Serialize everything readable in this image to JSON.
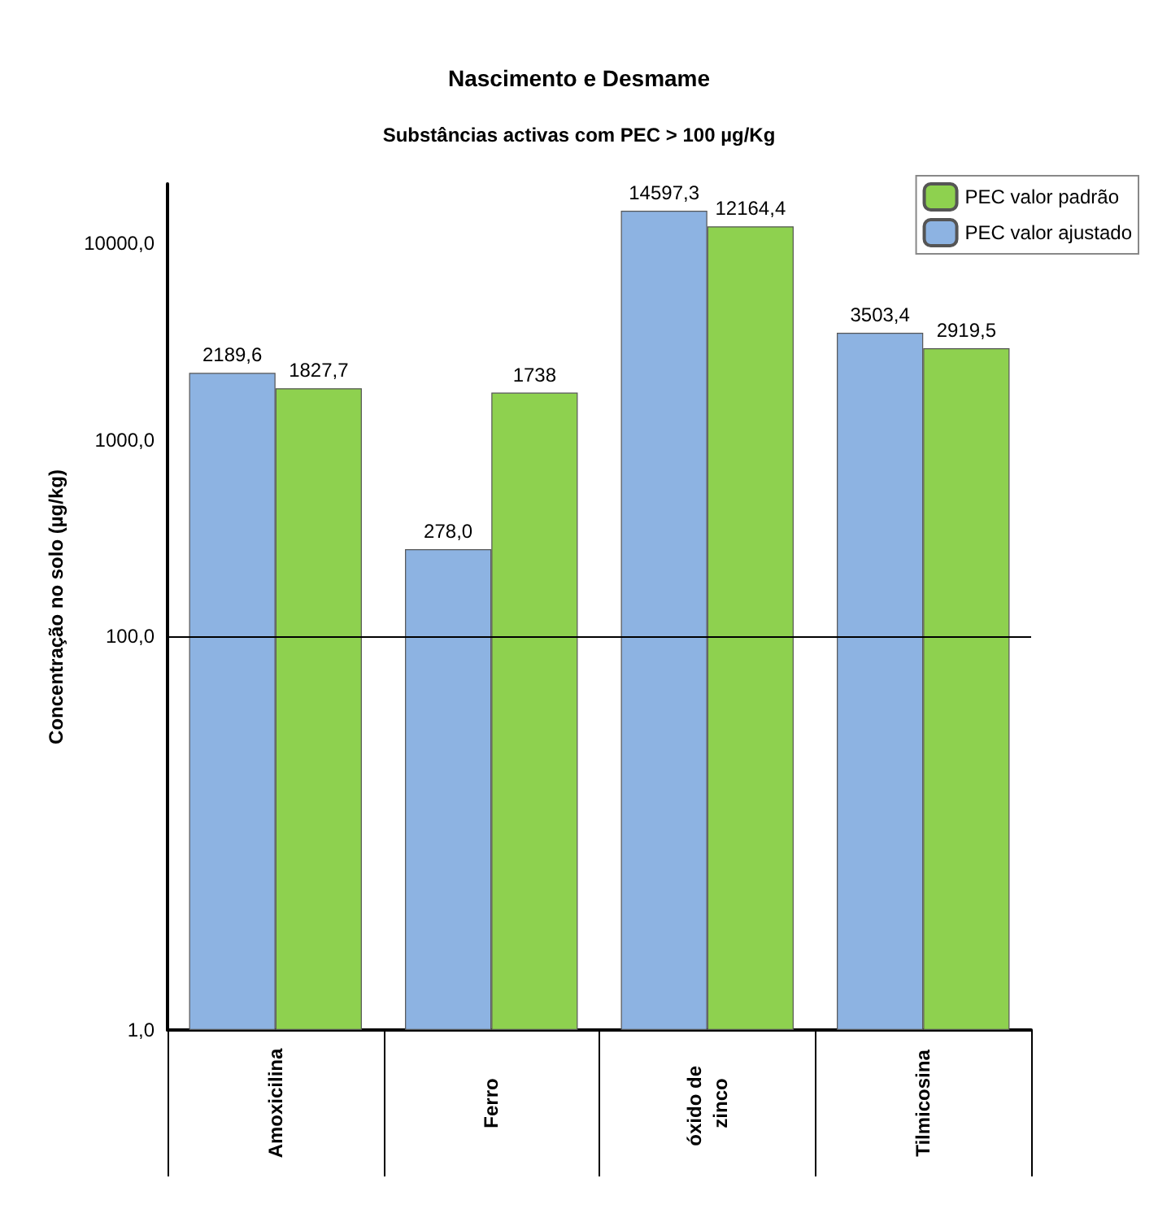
{
  "chart_data": {
    "type": "bar",
    "title": "Nascimento e Desmame",
    "subtitle": "Substâncias activas com PEC > 100 µg/Kg",
    "ylabel": "Concentração no solo (µg/kg)",
    "categories": [
      "Amoxicilina",
      "Ferro",
      "óxido de zinco",
      "Tilmicosina"
    ],
    "series": [
      {
        "name": "PEC valor ajustado",
        "color": "#8db3e2",
        "values": [
          2189.6,
          278.0,
          14597.3,
          3503.4
        ],
        "value_labels": [
          "2189,6",
          "278,0",
          "14597,3",
          "3503,4"
        ]
      },
      {
        "name": "PEC valor padrão",
        "color": "#8ed14f",
        "values": [
          1827.7,
          1738,
          12164.4,
          2919.5
        ],
        "value_labels": [
          "1827,7",
          "1738",
          "12164,4",
          "2919,5"
        ]
      }
    ],
    "log": true,
    "ylim": [
      1,
      20000
    ],
    "yticks": [
      {
        "value": 1,
        "label": "1,0"
      },
      {
        "value": 100,
        "label": "100,0"
      },
      {
        "value": 1000,
        "label": "1000,0"
      },
      {
        "value": 10000,
        "label": "10000,0"
      }
    ],
    "ref_lines": [
      {
        "axis": "y",
        "value": 100,
        "label": null,
        "color": "#000000"
      }
    ],
    "grid": false,
    "legend": "top right"
  }
}
